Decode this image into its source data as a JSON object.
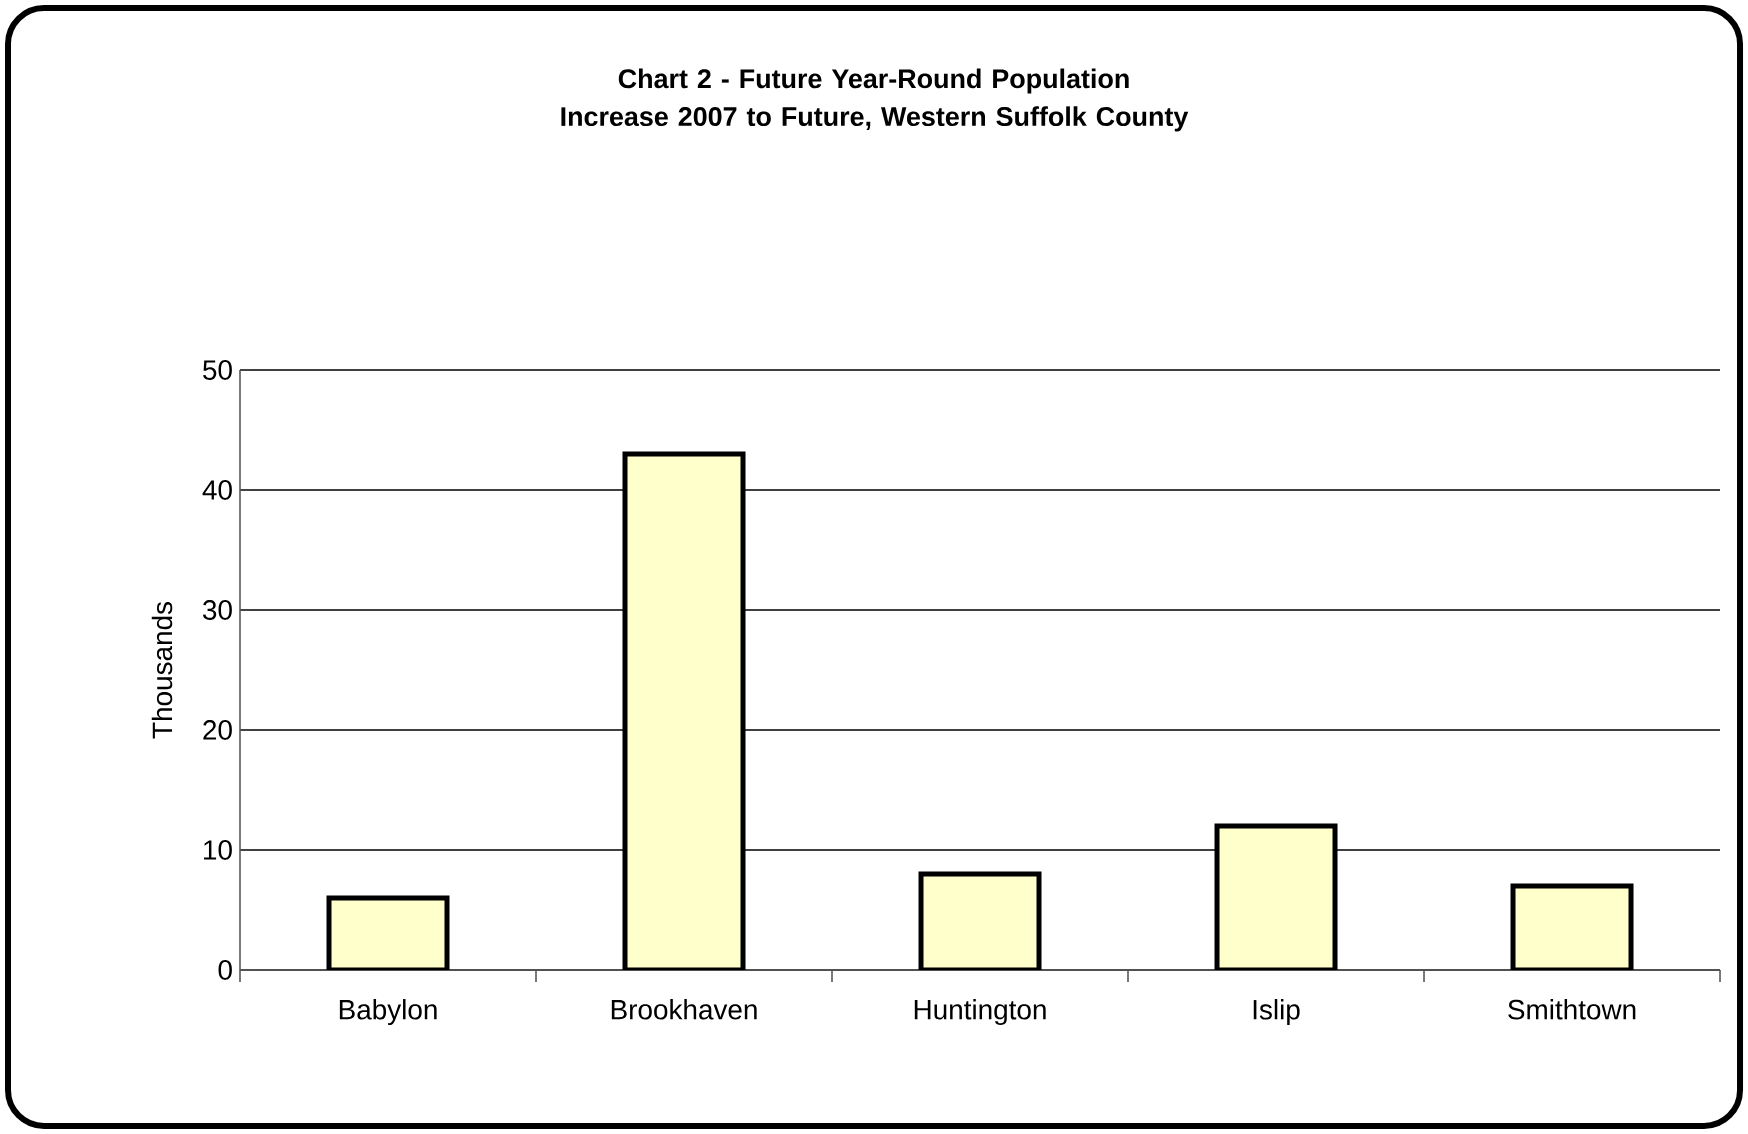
{
  "chart_data": {
    "type": "bar",
    "title": "Chart 2 -  Future Year-Round Population Increase 2007 to Future, Western Suffolk County",
    "categories": [
      "Babylon",
      "Brookhaven",
      "Huntington",
      "Islip",
      "Smithtown"
    ],
    "values": [
      6,
      43,
      8,
      12,
      7
    ],
    "color": "#ffffcc",
    "ylabel": "Thousands",
    "ylim": [
      0,
      50
    ],
    "yticks": [
      0,
      10,
      20,
      30,
      40,
      50
    ],
    "grid": "y"
  }
}
